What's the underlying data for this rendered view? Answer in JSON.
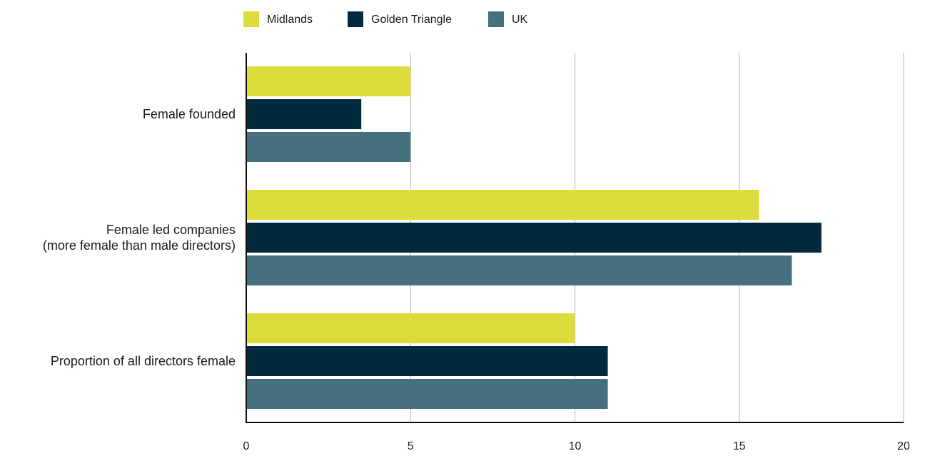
{
  "chart_data": {
    "type": "bar",
    "orientation": "horizontal",
    "categories": [
      [
        "Female founded"
      ],
      [
        "Female led companies",
        "(more female than male directors)"
      ],
      [
        "Proportion of all directors female"
      ]
    ],
    "series": [
      {
        "name": "Midlands",
        "color": "#dcdc3c",
        "values": [
          5,
          15.6,
          10
        ]
      },
      {
        "name": "Golden Triangle",
        "color": "#032a3c",
        "values": [
          3.5,
          17.5,
          11
        ]
      },
      {
        "name": "UK",
        "color": "#47707f",
        "values": [
          5,
          16.6,
          11
        ]
      }
    ],
    "x_ticks": [
      0,
      5,
      10,
      15,
      20
    ],
    "xlim": [
      0,
      20
    ],
    "grid": true,
    "legend_position": "top-left",
    "title": "",
    "xlabel": "",
    "ylabel": ""
  }
}
